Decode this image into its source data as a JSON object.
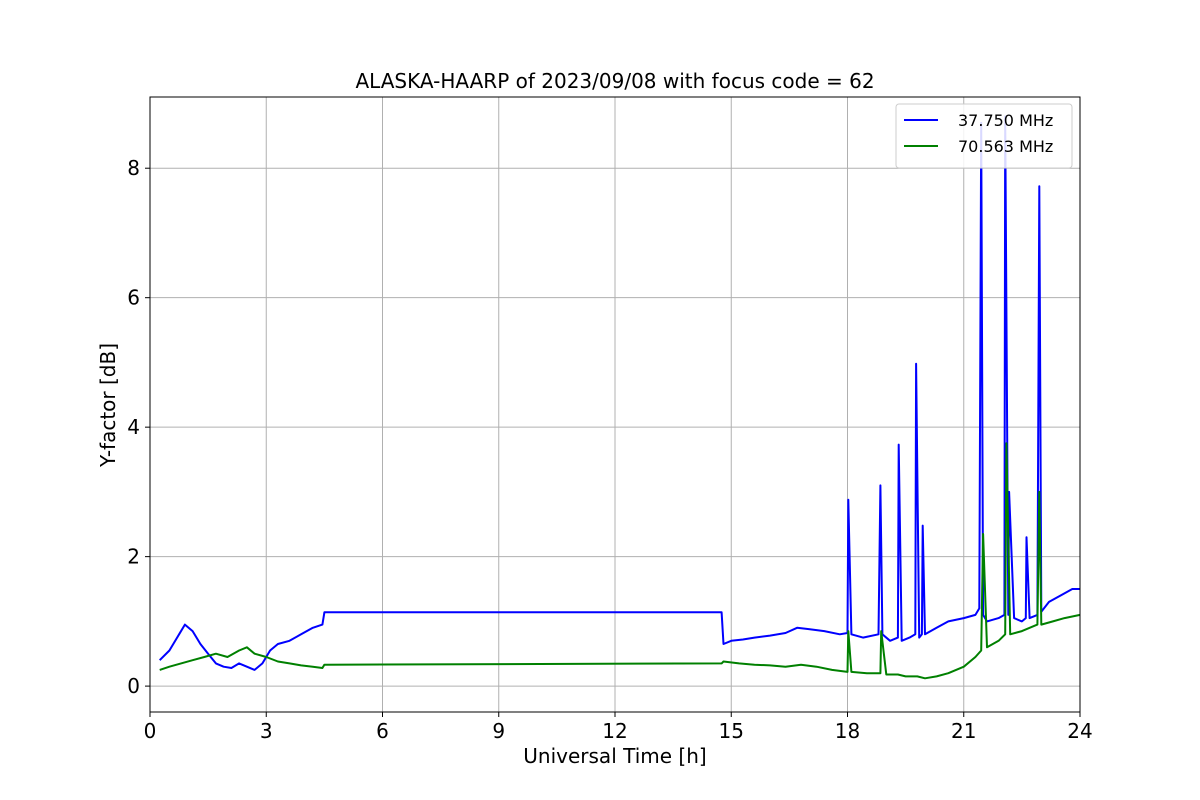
{
  "chart_data": {
    "type": "line",
    "title": "ALASKA-HAARP of 2023/09/08 with focus code = 62",
    "xlabel": "Universal Time [h]",
    "ylabel": "Y-factor [dB]",
    "xlim": [
      0,
      24
    ],
    "ylim": [
      -0.4,
      9.1
    ],
    "xticks": [
      0,
      3,
      6,
      9,
      12,
      15,
      18,
      21,
      24
    ],
    "yticks": [
      0,
      2,
      4,
      6,
      8
    ],
    "grid": true,
    "legend_position": "top-right",
    "series": [
      {
        "name": "37.750 MHz",
        "color": "#0000ff",
        "x": [
          0.25,
          0.5,
          0.75,
          0.9,
          1.1,
          1.3,
          1.5,
          1.7,
          1.9,
          2.1,
          2.3,
          2.5,
          2.7,
          2.9,
          3.1,
          3.3,
          3.6,
          3.9,
          4.2,
          4.45,
          4.5,
          14.75,
          14.8,
          15.0,
          15.3,
          15.6,
          16.0,
          16.4,
          16.7,
          17.0,
          17.4,
          17.8,
          18.0,
          18.02,
          18.1,
          18.4,
          18.8,
          18.85,
          18.9,
          19.1,
          19.3,
          19.32,
          19.4,
          19.6,
          19.75,
          19.77,
          19.85,
          19.92,
          19.94,
          20.0,
          20.3,
          20.6,
          21.0,
          21.3,
          21.4,
          21.45,
          21.5,
          21.6,
          21.9,
          22.05,
          22.07,
          22.15,
          22.17,
          22.3,
          22.5,
          22.6,
          22.62,
          22.7,
          22.9,
          22.95,
          23.0,
          23.2,
          23.5,
          23.8,
          24.0
        ],
        "y": [
          0.4,
          0.55,
          0.8,
          0.95,
          0.85,
          0.65,
          0.5,
          0.35,
          0.3,
          0.28,
          0.35,
          0.3,
          0.25,
          0.35,
          0.55,
          0.65,
          0.7,
          0.8,
          0.9,
          0.95,
          1.14,
          1.14,
          0.65,
          0.7,
          0.72,
          0.75,
          0.78,
          0.82,
          0.9,
          0.88,
          0.85,
          0.8,
          0.82,
          2.88,
          0.8,
          0.75,
          0.8,
          3.1,
          0.8,
          0.7,
          0.75,
          3.73,
          0.7,
          0.75,
          0.8,
          4.98,
          0.75,
          0.8,
          2.48,
          0.8,
          0.9,
          1.0,
          1.05,
          1.1,
          1.2,
          8.7,
          1.1,
          1.0,
          1.05,
          1.1,
          8.8,
          1.1,
          3.0,
          1.05,
          1.0,
          1.05,
          2.3,
          1.05,
          1.1,
          7.72,
          1.15,
          1.3,
          1.4,
          1.5,
          1.5
        ]
      },
      {
        "name": "70.563 MHz",
        "color": "#008000",
        "x": [
          0.25,
          0.5,
          0.8,
          1.1,
          1.4,
          1.7,
          2.0,
          2.3,
          2.5,
          2.7,
          3.0,
          3.3,
          3.6,
          3.9,
          4.2,
          4.45,
          4.5,
          14.75,
          14.8,
          15.2,
          15.6,
          16.0,
          16.4,
          16.8,
          17.2,
          17.6,
          18.0,
          18.02,
          18.1,
          18.5,
          18.85,
          18.87,
          19.0,
          19.3,
          19.5,
          19.8,
          20.0,
          20.3,
          20.6,
          21.0,
          21.3,
          21.45,
          21.5,
          21.6,
          21.9,
          22.07,
          22.1,
          22.2,
          22.5,
          22.9,
          22.95,
          23.0,
          23.3,
          23.6,
          24.0
        ],
        "y": [
          0.25,
          0.3,
          0.35,
          0.4,
          0.45,
          0.5,
          0.45,
          0.55,
          0.6,
          0.5,
          0.45,
          0.38,
          0.35,
          0.32,
          0.3,
          0.28,
          0.33,
          0.35,
          0.38,
          0.35,
          0.33,
          0.32,
          0.3,
          0.33,
          0.3,
          0.25,
          0.22,
          0.85,
          0.22,
          0.2,
          0.2,
          0.85,
          0.18,
          0.18,
          0.15,
          0.15,
          0.12,
          0.15,
          0.2,
          0.3,
          0.45,
          0.55,
          2.35,
          0.6,
          0.7,
          0.8,
          3.75,
          0.8,
          0.85,
          0.95,
          3.0,
          0.95,
          1.0,
          1.05,
          1.1
        ]
      }
    ]
  }
}
